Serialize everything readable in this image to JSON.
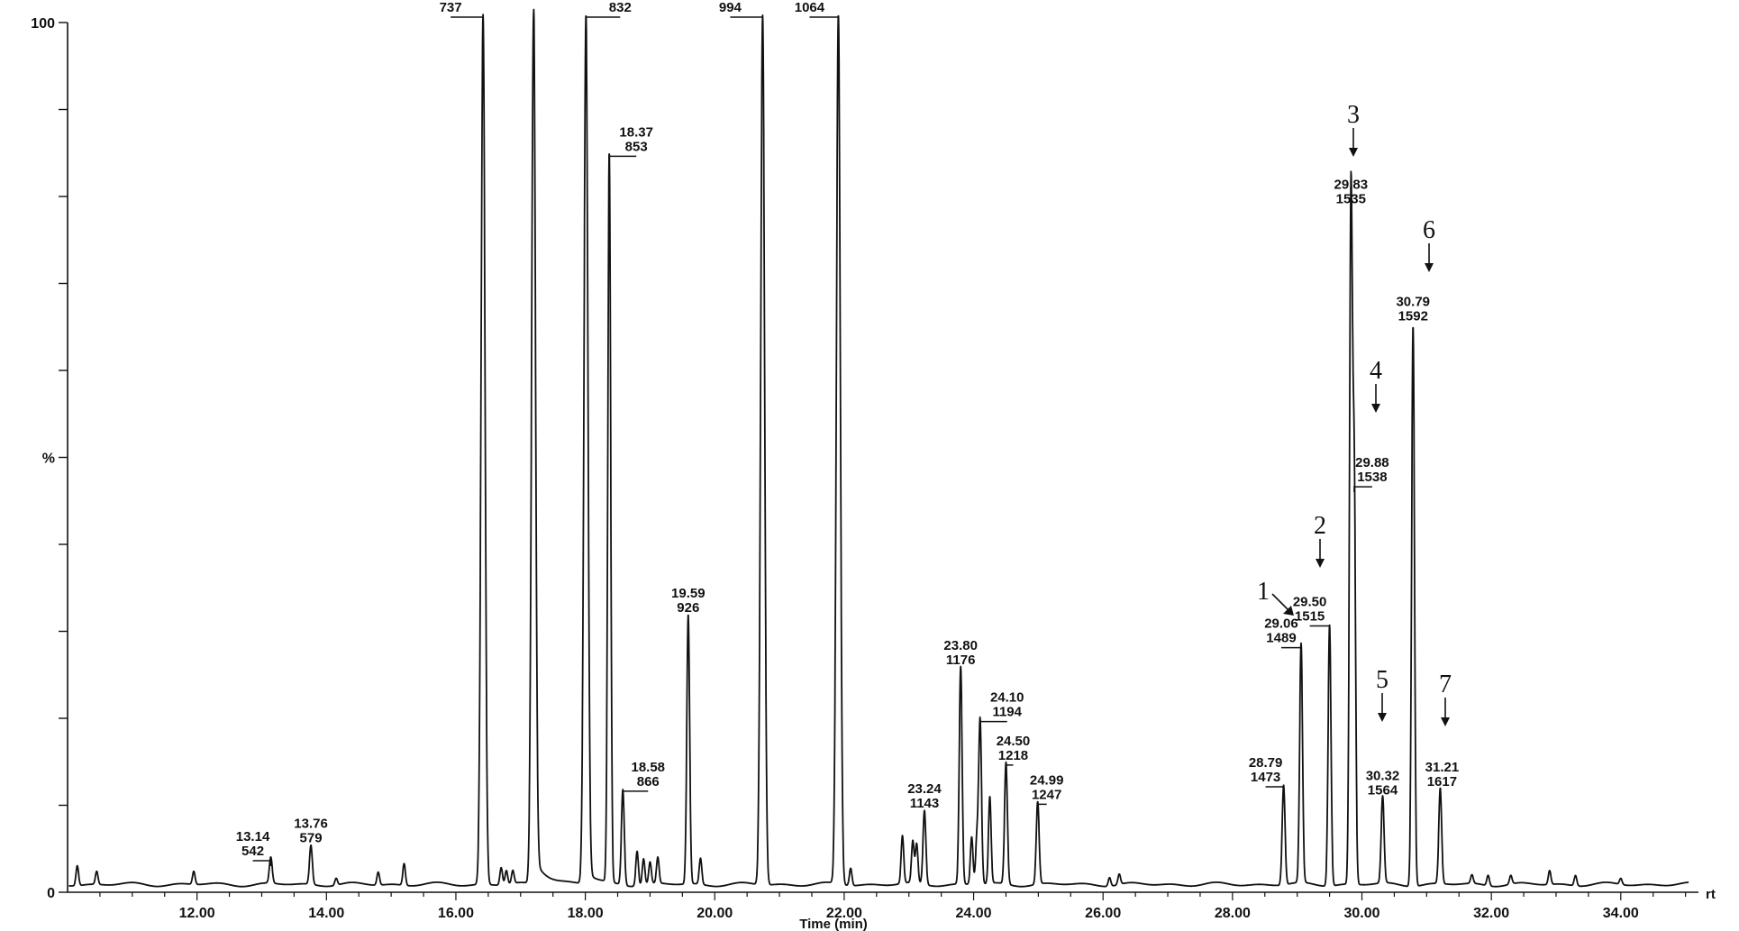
{
  "chart_data": {
    "type": "line",
    "xlabel": "Time (min)",
    "ylabel": "%",
    "x_end_label": "rt",
    "xlim": [
      10.0,
      35.2
    ],
    "ylim": [
      0,
      100
    ],
    "x_ticks": [
      {
        "value": 12,
        "label": "12.00"
      },
      {
        "value": 14,
        "label": "14.00"
      },
      {
        "value": 16,
        "label": "16.00"
      },
      {
        "value": 18,
        "label": "18.00"
      },
      {
        "value": 20,
        "label": "20.00"
      },
      {
        "value": 22,
        "label": "22.00"
      },
      {
        "value": 24,
        "label": "24.00"
      },
      {
        "value": 26,
        "label": "26.00"
      },
      {
        "value": 28,
        "label": "28.00"
      },
      {
        "value": 30,
        "label": "30.00"
      },
      {
        "value": 32,
        "label": "32.00"
      },
      {
        "value": 34,
        "label": "34.00"
      }
    ],
    "y_ticks": [
      {
        "value": 100,
        "label": "100"
      },
      {
        "value": 50,
        "label": "%"
      },
      {
        "value": 0,
        "label": "0"
      }
    ],
    "labeled_peaks": [
      {
        "rt": 13.14,
        "ri": "542",
        "rt_label": "13.14",
        "height": 3
      },
      {
        "rt": 13.76,
        "ri": "579",
        "rt_label": "13.76",
        "height": 4.5
      },
      {
        "rt": 16.42,
        "ri": "737",
        "rt_label": "16.42",
        "height": 100
      },
      {
        "rt": 18.01,
        "ri": "832",
        "rt_label": "18.01",
        "height": 100
      },
      {
        "rt": 18.37,
        "ri": "853",
        "rt_label": "18.37",
        "height": 84
      },
      {
        "rt": 18.58,
        "ri": "866",
        "rt_label": "18.58",
        "height": 11
      },
      {
        "rt": 19.59,
        "ri": "926",
        "rt_label": "19.59",
        "height": 31
      },
      {
        "rt": 20.74,
        "ri": "994",
        "rt_label": "20.74",
        "height": 100
      },
      {
        "rt": 21.91,
        "ri": "1064",
        "rt_label": "21.91",
        "height": 100
      },
      {
        "rt": 23.24,
        "ri": "1143",
        "rt_label": "23.24",
        "height": 8.5
      },
      {
        "rt": 23.8,
        "ri": "1176",
        "rt_label": "23.80",
        "height": 25
      },
      {
        "rt": 24.1,
        "ri": "1194",
        "rt_label": "24.10",
        "height": 19
      },
      {
        "rt": 24.5,
        "ri": "1218",
        "rt_label": "24.50",
        "height": 14
      },
      {
        "rt": 24.99,
        "ri": "1247",
        "rt_label": "24.99",
        "height": 9.5
      },
      {
        "rt": 28.79,
        "ri": "1473",
        "rt_label": "28.79",
        "height": 11.5
      },
      {
        "rt": 29.06,
        "ri": "1489",
        "rt_label": "29.06",
        "height": 27.5
      },
      {
        "rt": 29.5,
        "ri": "1515",
        "rt_label": "29.50",
        "height": 30
      },
      {
        "rt": 29.83,
        "ri": "1535",
        "rt_label": "29.83",
        "height": 78
      },
      {
        "rt": 29.88,
        "ri": "1538",
        "rt_label": "29.88",
        "height": 46
      },
      {
        "rt": 30.32,
        "ri": "1564",
        "rt_label": "30.32",
        "height": 10
      },
      {
        "rt": 30.79,
        "ri": "1592",
        "rt_label": "30.79",
        "height": 64.5
      },
      {
        "rt": 31.21,
        "ri": "1617",
        "rt_label": "31.21",
        "height": 11
      }
    ],
    "minor_peaks": [
      {
        "rt": 10.15,
        "height": 2.3
      },
      {
        "rt": 10.45,
        "height": 1.5
      },
      {
        "rt": 11.95,
        "height": 1.5
      },
      {
        "rt": 14.15,
        "height": 0.8
      },
      {
        "rt": 14.8,
        "height": 1.5
      },
      {
        "rt": 15.2,
        "height": 2.5
      },
      {
        "rt": 16.7,
        "height": 2
      },
      {
        "rt": 16.78,
        "height": 1.6
      },
      {
        "rt": 16.88,
        "height": 1.5
      },
      {
        "rt": 17.2,
        "height": 100
      },
      {
        "rt": 18.8,
        "height": 4
      },
      {
        "rt": 18.9,
        "height": 3
      },
      {
        "rt": 19.0,
        "height": 2.5
      },
      {
        "rt": 19.12,
        "height": 3
      },
      {
        "rt": 19.78,
        "height": 3
      },
      {
        "rt": 22.1,
        "height": 2
      },
      {
        "rt": 22.9,
        "height": 5.5
      },
      {
        "rt": 23.06,
        "height": 4.8
      },
      {
        "rt": 23.12,
        "height": 4.5
      },
      {
        "rt": 23.97,
        "height": 5.5
      },
      {
        "rt": 24.05,
        "height": 5
      },
      {
        "rt": 24.25,
        "height": 10
      },
      {
        "rt": 26.1,
        "height": 1
      },
      {
        "rt": 26.25,
        "height": 1.2
      },
      {
        "rt": 31.7,
        "height": 1
      },
      {
        "rt": 31.95,
        "height": 1.2
      },
      {
        "rt": 32.3,
        "height": 1
      },
      {
        "rt": 32.9,
        "height": 1.6
      },
      {
        "rt": 33.3,
        "height": 1.2
      },
      {
        "rt": 34.0,
        "height": 0.7
      }
    ],
    "markers": [
      {
        "label": "1",
        "rt": 29.06
      },
      {
        "label": "2",
        "rt": 29.5
      },
      {
        "label": "3",
        "rt": 29.83
      },
      {
        "label": "4",
        "rt": 29.88
      },
      {
        "label": "5",
        "rt": 30.32
      },
      {
        "label": "6",
        "rt": 30.79
      },
      {
        "label": "7",
        "rt": 31.21
      }
    ]
  }
}
